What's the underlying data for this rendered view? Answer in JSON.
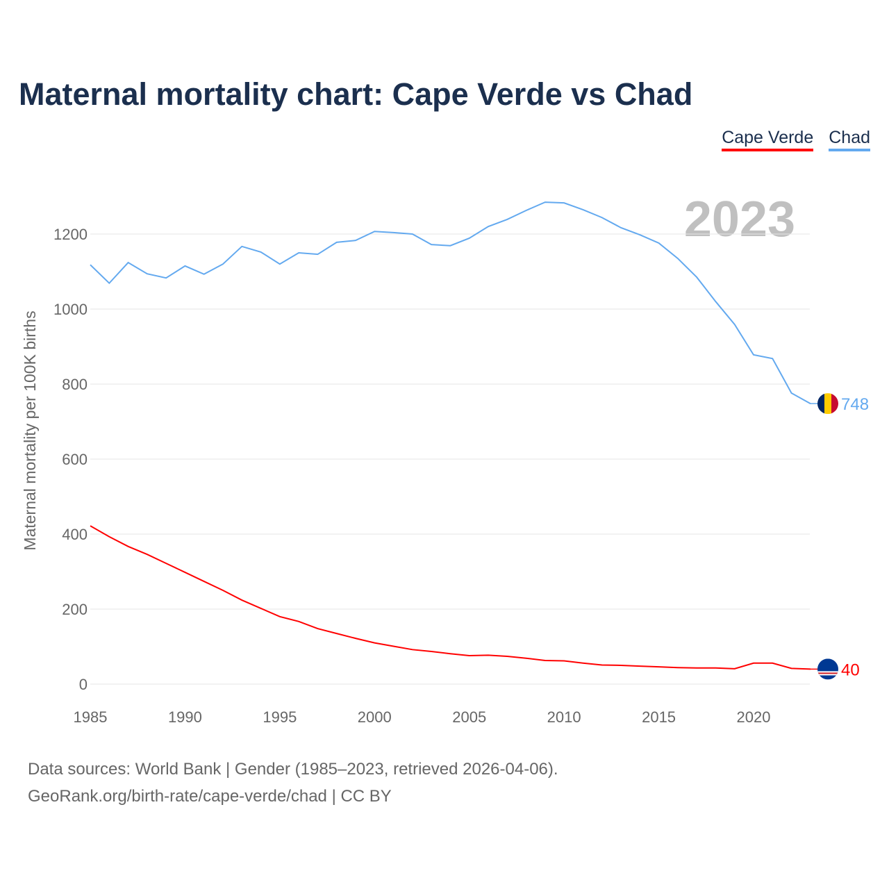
{
  "chart_data": {
    "type": "line",
    "title": "Maternal mortality chart: Cape Verde vs Chad",
    "ylabel": "Maternal mortality per 100K births",
    "xlabel": "",
    "ylim": [
      0,
      1300
    ],
    "xlim": [
      1985,
      2023
    ],
    "year_label": "2023",
    "yticks": [
      0,
      200,
      400,
      600,
      800,
      1000,
      1200
    ],
    "xticks": [
      1985,
      1990,
      1995,
      2000,
      2005,
      2010,
      2015,
      2020
    ],
    "grid": true,
    "legend_position": "top-right",
    "x": [
      1985,
      1986,
      1987,
      1988,
      1989,
      1990,
      1991,
      1992,
      1993,
      1994,
      1995,
      1996,
      1997,
      1998,
      1999,
      2000,
      2001,
      2002,
      2003,
      2004,
      2005,
      2006,
      2007,
      2008,
      2009,
      2010,
      2011,
      2012,
      2013,
      2014,
      2015,
      2016,
      2017,
      2018,
      2019,
      2020,
      2021,
      2022,
      2023
    ],
    "series": [
      {
        "name": "Cape Verde",
        "color": "#ff0000",
        "end_label": "40",
        "values": [
          422,
          393,
          367,
          346,
          322,
          298,
          274,
          250,
          224,
          202,
          180,
          167,
          148,
          135,
          122,
          110,
          101,
          92,
          87,
          81,
          76,
          77,
          74,
          69,
          63,
          62,
          56,
          51,
          50,
          48,
          46,
          44,
          43,
          43,
          41,
          56,
          56,
          42,
          40
        ]
      },
      {
        "name": "Chad",
        "color": "#63a9ef",
        "end_label": "748",
        "values": [
          1118,
          1069,
          1124,
          1094,
          1083,
          1115,
          1093,
          1120,
          1167,
          1152,
          1120,
          1150,
          1146,
          1178,
          1183,
          1207,
          1204,
          1200,
          1172,
          1169,
          1189,
          1220,
          1239,
          1263,
          1285,
          1283,
          1265,
          1244,
          1217,
          1198,
          1176,
          1135,
          1085,
          1020,
          959,
          878,
          868,
          776,
          748
        ]
      }
    ]
  },
  "footer": {
    "line1": "Data sources: World Bank | Gender (1985–2023, retrieved 2026-04-06).",
    "line2": "GeoRank.org/birth-rate/cape-verde/chad | CC BY"
  }
}
